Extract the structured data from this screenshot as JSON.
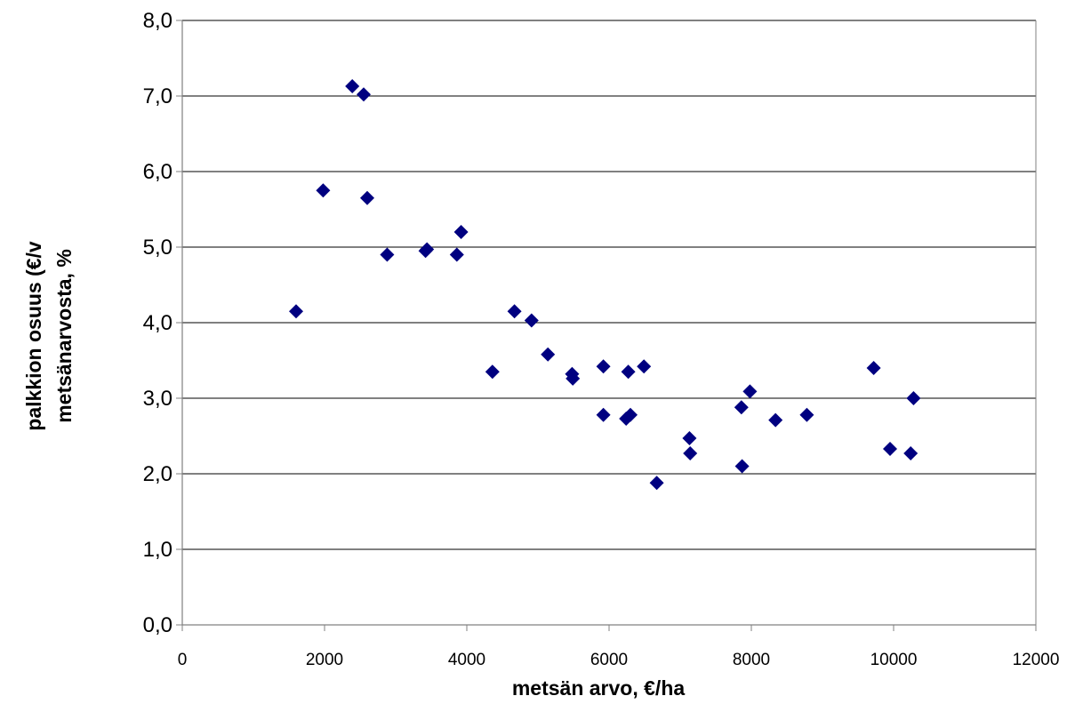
{
  "chart_data": {
    "type": "scatter",
    "title": "",
    "xlabel": "metsän arvo, €/ha",
    "ylabel_lines": [
      "palkkion osuus (€/v",
      "metsänarvosta, %"
    ],
    "xlim": [
      0,
      12000
    ],
    "ylim": [
      0,
      8
    ],
    "x_ticks": [
      0,
      2000,
      4000,
      6000,
      8000,
      10000,
      12000
    ],
    "x_tick_labels": [
      "0",
      "2000",
      "4000",
      "6000",
      "8000",
      "10000",
      "12000"
    ],
    "y_ticks": [
      0,
      1,
      2,
      3,
      4,
      5,
      6,
      7,
      8
    ],
    "y_tick_labels": [
      "0,0",
      "1,0",
      "2,0",
      "3,0",
      "4,0",
      "5,0",
      "6,0",
      "7,0",
      "8,0"
    ],
    "grid": "horizontal",
    "legend": "none",
    "marker": "diamond",
    "colors": {
      "marker": "#000080",
      "grid": "#000000",
      "axis": "#808080"
    },
    "series": [
      {
        "points": [
          [
            1600,
            4.15
          ],
          [
            1980,
            5.75
          ],
          [
            2390,
            7.13
          ],
          [
            2550,
            7.02
          ],
          [
            2600,
            5.65
          ],
          [
            2880,
            4.9
          ],
          [
            3420,
            4.95
          ],
          [
            3440,
            4.97
          ],
          [
            3860,
            4.9
          ],
          [
            3920,
            5.2
          ],
          [
            4360,
            3.35
          ],
          [
            4670,
            4.15
          ],
          [
            4910,
            4.03
          ],
          [
            5140,
            3.58
          ],
          [
            5480,
            3.32
          ],
          [
            5490,
            3.26
          ],
          [
            5920,
            3.42
          ],
          [
            5920,
            2.78
          ],
          [
            6240,
            2.73
          ],
          [
            6270,
            3.35
          ],
          [
            6300,
            2.78
          ],
          [
            6490,
            3.42
          ],
          [
            6670,
            1.88
          ],
          [
            7130,
            2.47
          ],
          [
            7140,
            2.27
          ],
          [
            7860,
            2.88
          ],
          [
            7870,
            2.1
          ],
          [
            7980,
            3.09
          ],
          [
            8340,
            2.71
          ],
          [
            8780,
            2.78
          ],
          [
            9720,
            3.4
          ],
          [
            9950,
            2.33
          ],
          [
            10240,
            2.27
          ],
          [
            10280,
            3.0
          ]
        ]
      }
    ]
  }
}
